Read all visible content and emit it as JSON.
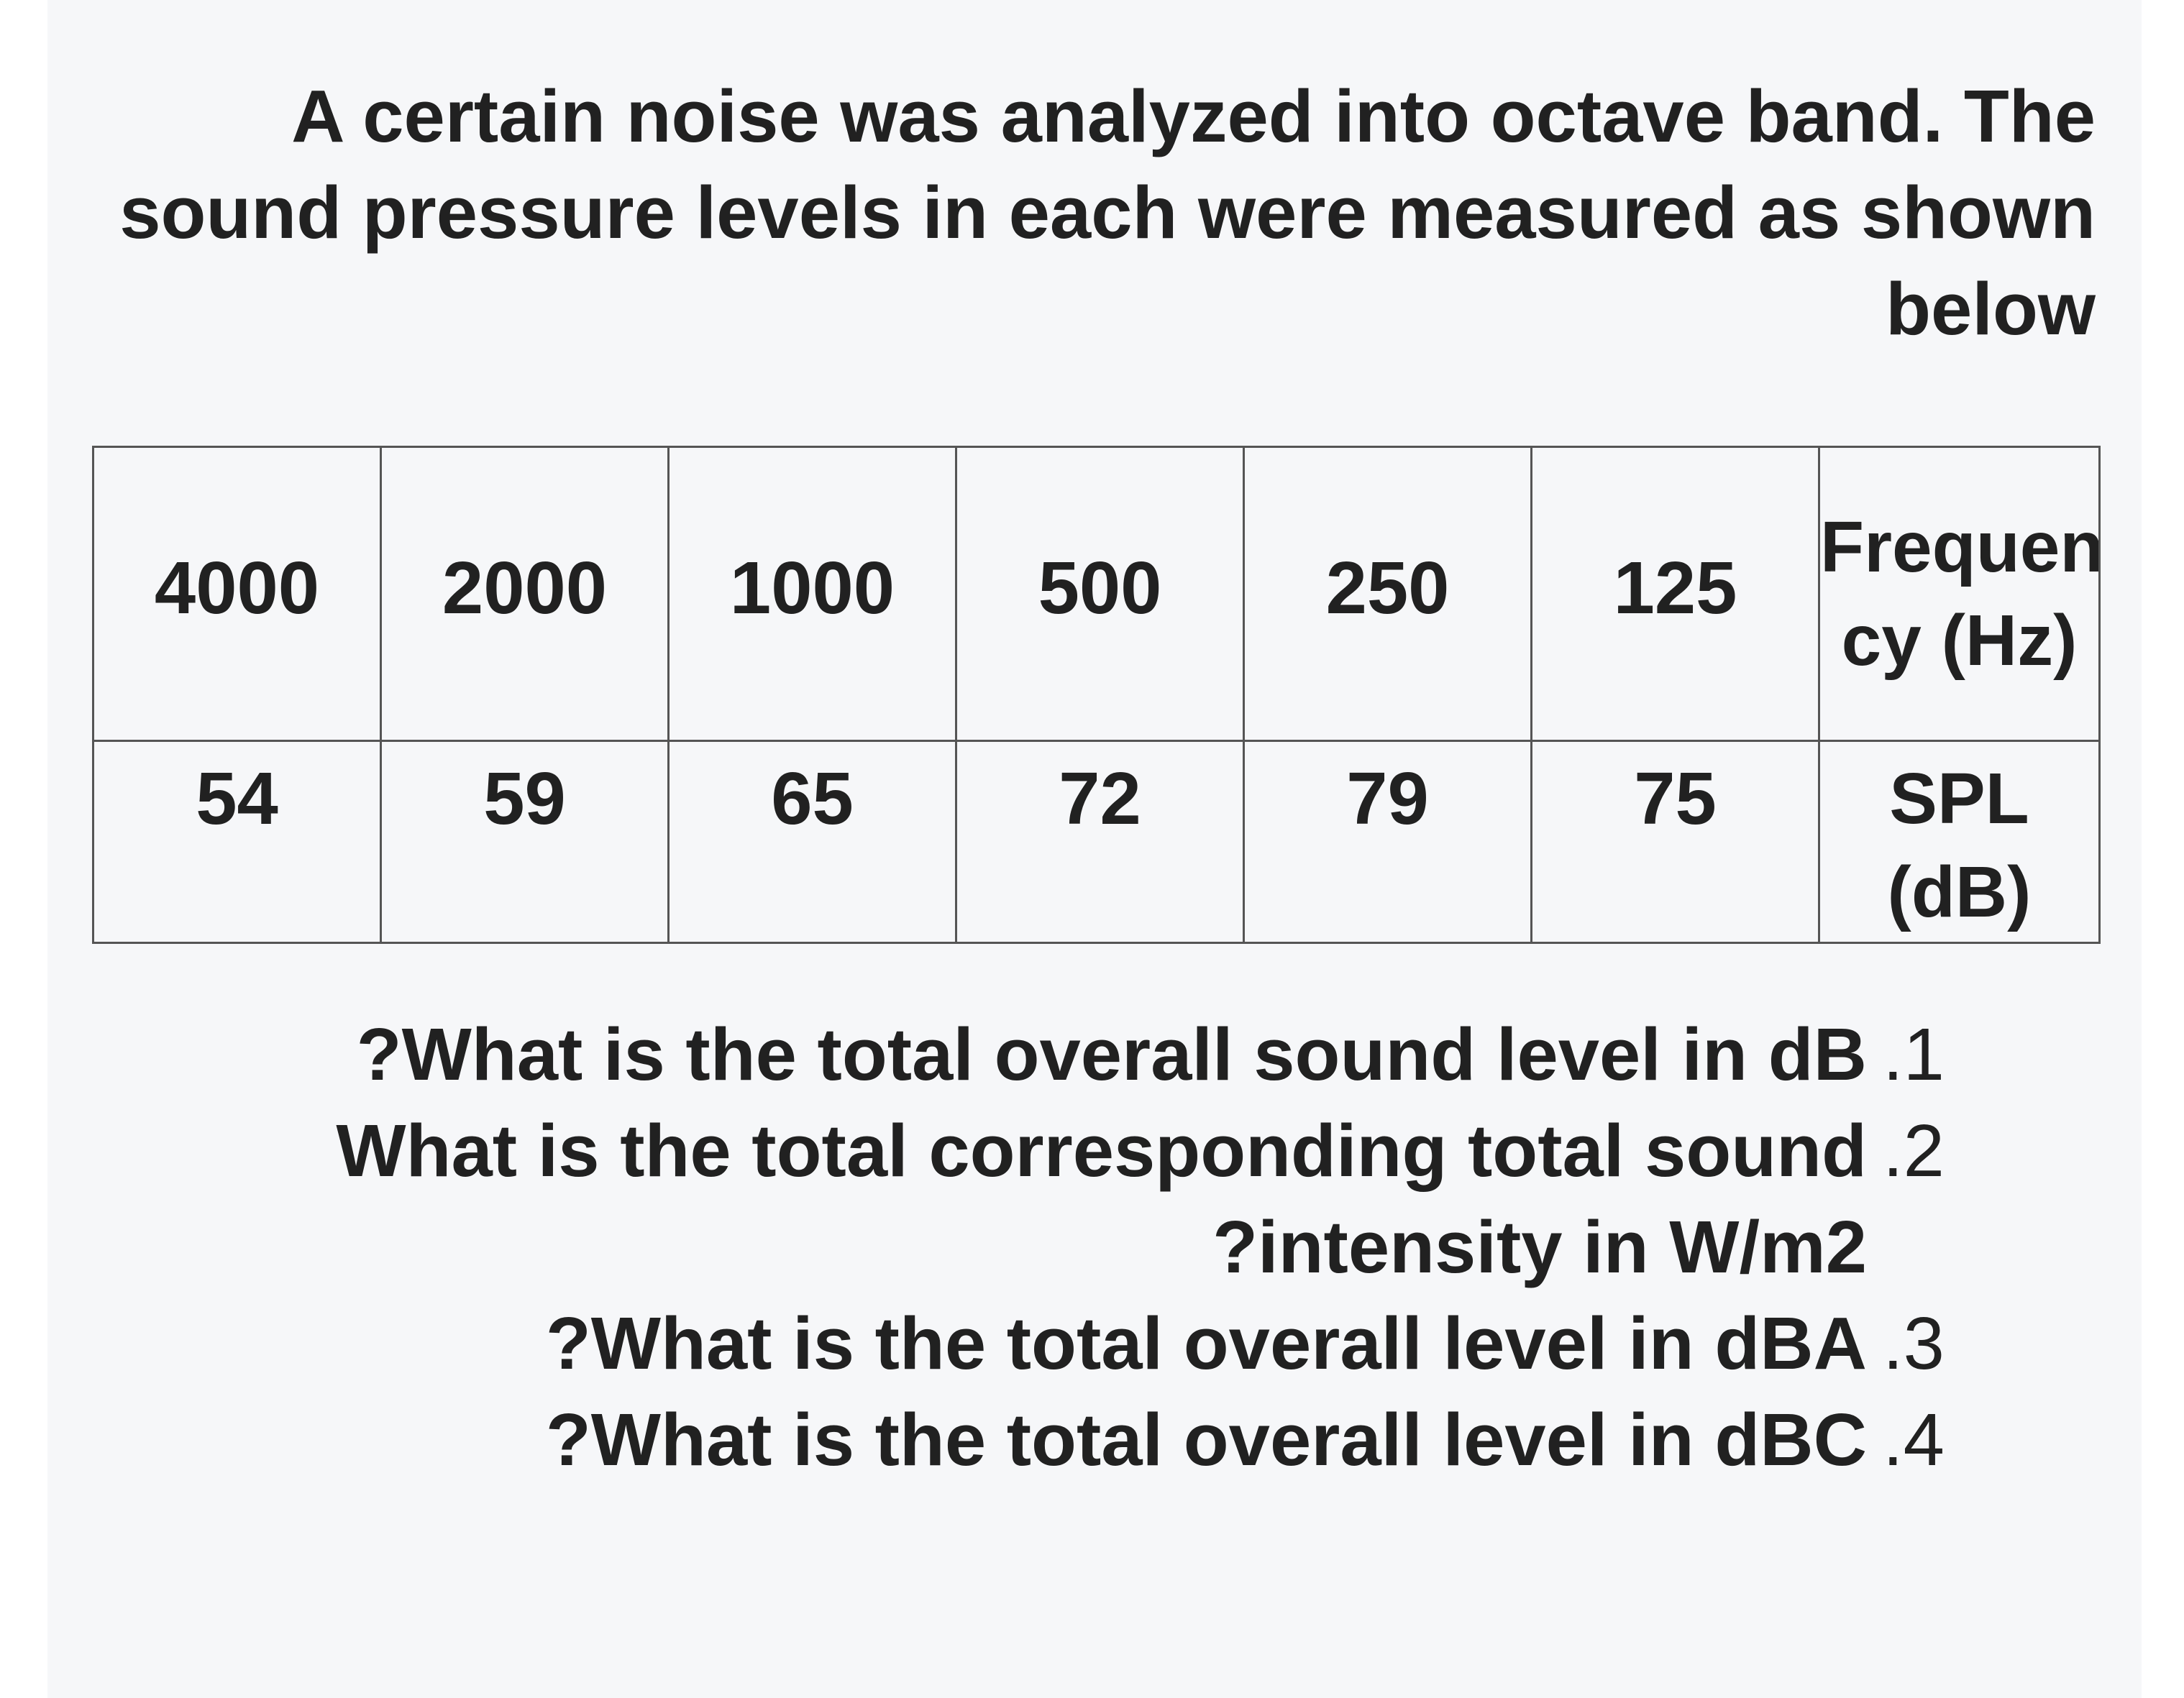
{
  "intro": {
    "lines": [
      "A certain noise was analyzed into octave band. The",
      "sound pressure levels in each were measured as shown",
      "below"
    ]
  },
  "table": {
    "frequency_header_lines": [
      "Frequen",
      "cy (Hz)"
    ],
    "spl_header": "SPL (dB)",
    "frequencies": [
      "4000",
      "2000",
      "1000",
      "500",
      "250",
      "125"
    ],
    "spl_values": [
      "54",
      "59",
      "65",
      "72",
      "79",
      "75"
    ]
  },
  "questions": [
    {
      "number": ".1",
      "lines": [
        "?What is the total overall sound level in dB"
      ]
    },
    {
      "number": ".2",
      "lines": [
        "What is the total corresponding total sound",
        "?intensity in W/m2"
      ]
    },
    {
      "number": ".3",
      "lines": [
        "?What is the total overall level in dBA"
      ]
    },
    {
      "number": ".4",
      "lines": [
        "?What is the total overall level in dBC"
      ]
    }
  ]
}
